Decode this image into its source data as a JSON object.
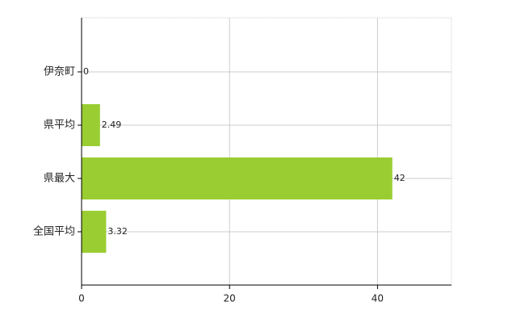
{
  "chart_data": {
    "type": "bar",
    "orientation": "horizontal",
    "categories": [
      "伊奈町",
      "県平均",
      "県最大",
      "全国平均"
    ],
    "values": [
      0,
      2.49,
      42,
      3.32
    ],
    "color": "#9acd32",
    "xlim": [
      0,
      50
    ],
    "xticks": [
      0,
      20,
      40
    ],
    "grid": true
  }
}
